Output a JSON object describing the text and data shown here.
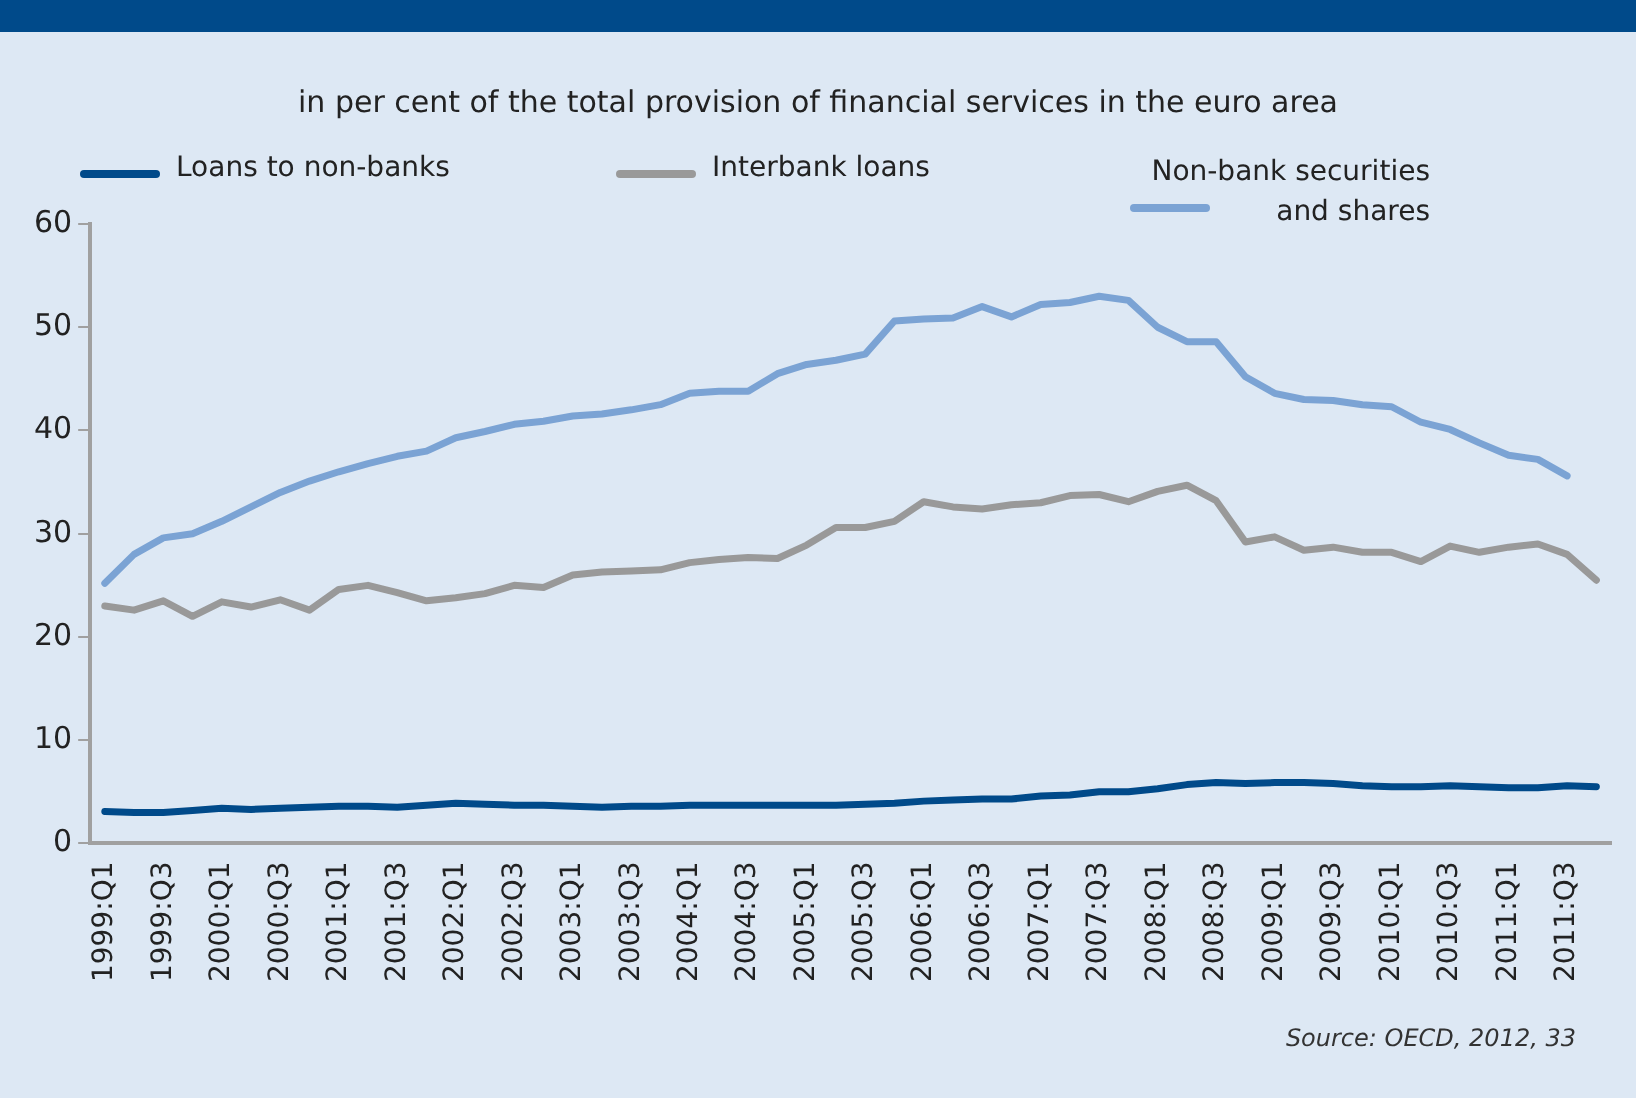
{
  "chart_data": {
    "type": "line",
    "title": "in per cent of the total provision of financial services in the euro area",
    "categories": [
      "1999:Q1",
      null,
      "1999:Q3",
      null,
      "2000:Q1",
      null,
      "2000:Q3",
      null,
      "2001:Q1",
      null,
      "2001:Q3",
      null,
      "2002:Q1",
      null,
      "2002:Q3",
      null,
      "2003:Q1",
      null,
      "2003:Q3",
      null,
      "2004:Q1",
      null,
      "2004:Q3",
      null,
      "2005:Q1",
      null,
      "2005:Q3",
      null,
      "2006:Q1",
      null,
      "2006:Q3",
      null,
      "2007:Q1",
      null,
      "2007:Q3",
      null,
      "2008:Q1",
      null,
      "2008:Q3",
      null,
      "2009:Q1",
      null,
      "2009:Q3",
      null,
      "2010:Q1",
      null,
      "2010:Q3",
      null,
      "2011:Q1",
      null,
      "2011:Q3",
      null
    ],
    "series": [
      {
        "name": "Loans to non-banks",
        "color": "#004a8a",
        "values": [
          3.1,
          3.0,
          3.0,
          3.2,
          3.4,
          3.3,
          3.4,
          3.5,
          3.6,
          3.6,
          3.5,
          3.7,
          3.9,
          3.8,
          3.7,
          3.7,
          3.6,
          3.5,
          3.6,
          3.6,
          3.7,
          3.7,
          3.7,
          3.7,
          3.7,
          3.7,
          3.8,
          3.9,
          4.1,
          4.2,
          4.3,
          4.3,
          4.6,
          4.7,
          5.0,
          5.0,
          5.3,
          5.7,
          5.9,
          5.8,
          5.9,
          5.9,
          5.8,
          5.6,
          5.5,
          5.5,
          5.6,
          5.5,
          5.4,
          5.4,
          5.6,
          5.5
        ]
      },
      {
        "name": "Interbank loans",
        "color": "#999999",
        "values": [
          23,
          22.6,
          23.5,
          22,
          23.4,
          22.9,
          23.6,
          22.6,
          24.6,
          25,
          24.3,
          23.5,
          23.8,
          24.2,
          25,
          24.8,
          26,
          26.3,
          26.4,
          26.5,
          27.2,
          27.5,
          27.7,
          27.6,
          28.9,
          30.6,
          30.6,
          31.2,
          33.1,
          32.6,
          32.4,
          32.8,
          33,
          33.7,
          33.8,
          33.1,
          34.1,
          34.7,
          33.2,
          29.2,
          29.7,
          28.4,
          28.7,
          28.2,
          28.2,
          27.3,
          28.8,
          28.2,
          28.7,
          29,
          28,
          25.5
        ]
      },
      {
        "name": "Non-bank securities and shares",
        "color": "#7ba3d4",
        "values": [
          25.2,
          28,
          29.6,
          30,
          31.2,
          32.6,
          34,
          35.1,
          36,
          36.8,
          37.5,
          38,
          39.3,
          39.9,
          40.6,
          40.9,
          41.4,
          41.6,
          42,
          42.5,
          43.6,
          43.8,
          43.8,
          45.5,
          46.4,
          46.8,
          47.4,
          50.6,
          50.8,
          50.9,
          52,
          51,
          52.2,
          52.4,
          53,
          52.6,
          50,
          48.6,
          48.6,
          45.2,
          43.6,
          43,
          42.9,
          42.5,
          42.3,
          40.8,
          40.1,
          38.8,
          37.6,
          37.2,
          35.6,
          null
        ]
      }
    ],
    "ylim": [
      0,
      60
    ],
    "yticks": [
      0,
      10,
      20,
      30,
      40,
      50,
      60
    ],
    "grid": false,
    "legend": "top",
    "marker": "none",
    "line_style": "solid",
    "annotations": [
      "Source: OECD, 2012, 33"
    ]
  }
}
